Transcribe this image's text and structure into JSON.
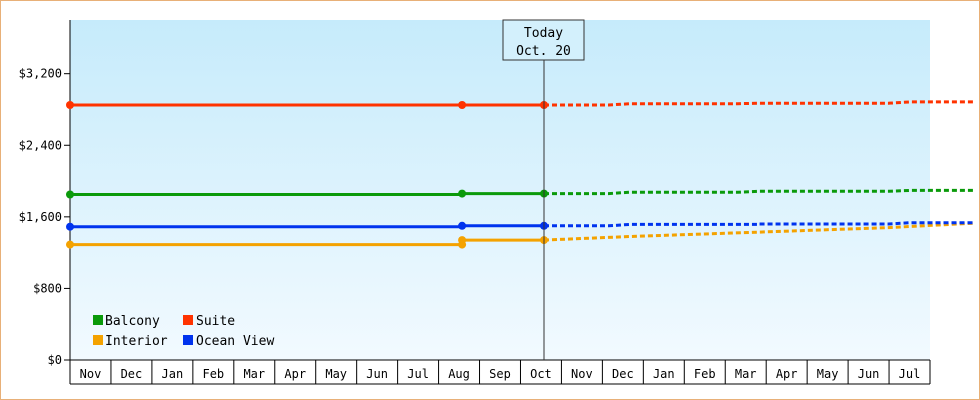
{
  "chart_data": {
    "type": "line",
    "title": "",
    "xlabel": "",
    "ylabel": "",
    "ylim": [
      0,
      3800
    ],
    "y_ticks": [
      "$0",
      "$800",
      "$1,600",
      "$2,400",
      "$3,200"
    ],
    "y_tick_values": [
      0,
      800,
      1600,
      2400,
      3200
    ],
    "months": [
      "Nov",
      "Dec",
      "Jan",
      "Feb",
      "Mar",
      "Apr",
      "May",
      "Jun",
      "Jul",
      "Aug",
      "Sep",
      "Oct",
      "Nov",
      "Dec",
      "Jan",
      "Feb",
      "Mar",
      "Apr",
      "May",
      "Jun",
      "Jul"
    ],
    "today_label_line1": "Today",
    "today_label_line2": "Oct. 20",
    "today_index": 11,
    "legend_placement": "bottom-left",
    "grid": false,
    "series": [
      {
        "name": "Balcony",
        "color": "#0a9a0a",
        "history": [
          [
            0,
            1850
          ],
          [
            9.1,
            1850
          ],
          [
            9.1,
            1860
          ],
          [
            11,
            1860
          ]
        ],
        "markers": [
          [
            0,
            1850
          ],
          [
            9.1,
            1860
          ],
          [
            11,
            1860
          ]
        ],
        "forecast": [
          [
            11,
            1860
          ],
          [
            12.5,
            1860
          ],
          [
            13,
            1875
          ],
          [
            15.5,
            1875
          ],
          [
            16,
            1885
          ],
          [
            19,
            1885
          ],
          [
            19.5,
            1895
          ],
          [
            21,
            1895
          ]
        ]
      },
      {
        "name": "Suite",
        "color": "#ff3300",
        "history": [
          [
            0,
            2850
          ],
          [
            11,
            2850
          ]
        ],
        "markers": [
          [
            0,
            2850
          ],
          [
            9.1,
            2850
          ],
          [
            11,
            2850
          ]
        ],
        "forecast": [
          [
            11,
            2850
          ],
          [
            12.5,
            2850
          ],
          [
            13,
            2865
          ],
          [
            15.5,
            2865
          ],
          [
            16,
            2870
          ],
          [
            19,
            2870
          ],
          [
            19.5,
            2885
          ],
          [
            21,
            2885
          ]
        ]
      },
      {
        "name": "Interior",
        "color": "#f4a200",
        "history": [
          [
            0,
            1290
          ],
          [
            9.1,
            1290
          ],
          [
            9.1,
            1340
          ],
          [
            11,
            1340
          ]
        ],
        "markers": [
          [
            0,
            1290
          ],
          [
            9.1,
            1290
          ],
          [
            9.1,
            1340
          ],
          [
            11,
            1340
          ]
        ],
        "forecast": [
          [
            11,
            1340
          ],
          [
            13,
            1380
          ],
          [
            16,
            1430
          ],
          [
            19,
            1480
          ],
          [
            21,
            1530
          ]
        ]
      },
      {
        "name": "Ocean View",
        "color": "#0033ee",
        "history": [
          [
            0,
            1490
          ],
          [
            9.1,
            1490
          ],
          [
            9.1,
            1500
          ],
          [
            11,
            1500
          ]
        ],
        "markers": [
          [
            0,
            1490
          ],
          [
            9.1,
            1500
          ],
          [
            11,
            1500
          ]
        ],
        "forecast": [
          [
            11,
            1500
          ],
          [
            12.5,
            1500
          ],
          [
            13,
            1515
          ],
          [
            16,
            1515
          ],
          [
            16,
            1520
          ],
          [
            19,
            1520
          ],
          [
            19.5,
            1535
          ],
          [
            21,
            1535
          ]
        ]
      }
    ]
  }
}
